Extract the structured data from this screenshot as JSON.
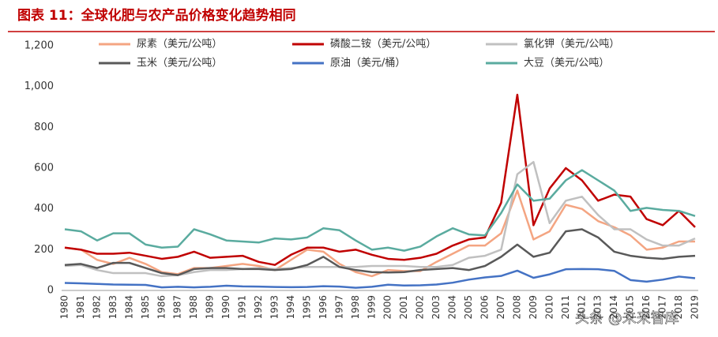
{
  "chart_data": {
    "type": "line",
    "title": "图表 11：全球化肥与农产品价格变化趋势相同",
    "watermark": "头条 @未来智库",
    "categories": [
      "1980",
      "1981",
      "1982",
      "1983",
      "1984",
      "1985",
      "1986",
      "1987",
      "1988",
      "1989",
      "1990",
      "1991",
      "1992",
      "1993",
      "1994",
      "1995",
      "1996",
      "1997",
      "1998",
      "1999",
      "2000",
      "2001",
      "2002",
      "2003",
      "2004",
      "2005",
      "2006",
      "2007",
      "2008",
      "2009",
      "2010",
      "2011",
      "2012",
      "2013",
      "2014",
      "2015",
      "2016",
      "2017",
      "2018",
      "2019"
    ],
    "series": [
      {
        "name": "尿素（美元/公吨）",
        "color": "#f4a582",
        "values": [
          210,
          200,
          150,
          130,
          160,
          130,
          90,
          80,
          110,
          110,
          120,
          130,
          120,
          100,
          150,
          200,
          190,
          130,
          90,
          70,
          100,
          95,
          95,
          140,
          180,
          220,
          220,
          280,
          490,
          250,
          290,
          420,
          400,
          340,
          310,
          270,
          200,
          210,
          240,
          240
        ]
      },
      {
        "name": "磷酸二铵（美元/公吨）",
        "color": "#c00000",
        "values": [
          210,
          200,
          180,
          180,
          185,
          170,
          155,
          165,
          190,
          160,
          165,
          170,
          140,
          125,
          175,
          210,
          210,
          190,
          200,
          175,
          155,
          150,
          160,
          180,
          220,
          250,
          260,
          430,
          960,
          320,
          500,
          600,
          540,
          440,
          470,
          460,
          350,
          320,
          390,
          310
        ]
      },
      {
        "name": "氯化钾（美元/公吨）",
        "color": "#c0c0c0",
        "values": [
          120,
          125,
          100,
          85,
          85,
          85,
          70,
          75,
          90,
          100,
          100,
          105,
          110,
          105,
          110,
          115,
          115,
          115,
          115,
          120,
          120,
          120,
          115,
          115,
          125,
          160,
          170,
          200,
          570,
          630,
          330,
          440,
          460,
          370,
          300,
          300,
          250,
          220,
          220,
          255
        ]
      },
      {
        "name": "玉米（美元/公吨）",
        "color": "#595959",
        "values": [
          125,
          130,
          110,
          135,
          135,
          110,
          85,
          75,
          105,
          110,
          110,
          105,
          105,
          100,
          105,
          125,
          165,
          115,
          100,
          90,
          88,
          90,
          100,
          105,
          110,
          100,
          120,
          165,
          225,
          165,
          185,
          290,
          300,
          260,
          190,
          170,
          160,
          155,
          165,
          170
        ]
      },
      {
        "name": "原油（美元/桶）",
        "color": "#4472c4",
        "values": [
          37,
          35,
          32,
          29,
          28,
          27,
          15,
          18,
          15,
          18,
          23,
          20,
          19,
          17,
          16,
          17,
          21,
          19,
          13,
          18,
          28,
          24,
          25,
          29,
          38,
          53,
          64,
          71,
          97,
          62,
          79,
          104,
          105,
          104,
          96,
          51,
          43,
          53,
          68,
          60
        ]
      },
      {
        "name": "大豆（美元/公吨）",
        "color": "#5aab9f",
        "values": [
          300,
          290,
          245,
          280,
          280,
          225,
          210,
          215,
          300,
          275,
          245,
          240,
          235,
          255,
          250,
          260,
          305,
          295,
          245,
          200,
          210,
          195,
          215,
          265,
          305,
          275,
          270,
          380,
          520,
          440,
          450,
          540,
          590,
          540,
          490,
          390,
          405,
          395,
          390,
          365
        ]
      }
    ],
    "ylim": [
      0,
      1200
    ],
    "yticks": [
      0,
      200,
      400,
      600,
      800,
      {
        "value": 1000,
        "label": "1,000"
      },
      {
        "value": 1200,
        "label": "1,200"
      }
    ],
    "grid": false
  }
}
